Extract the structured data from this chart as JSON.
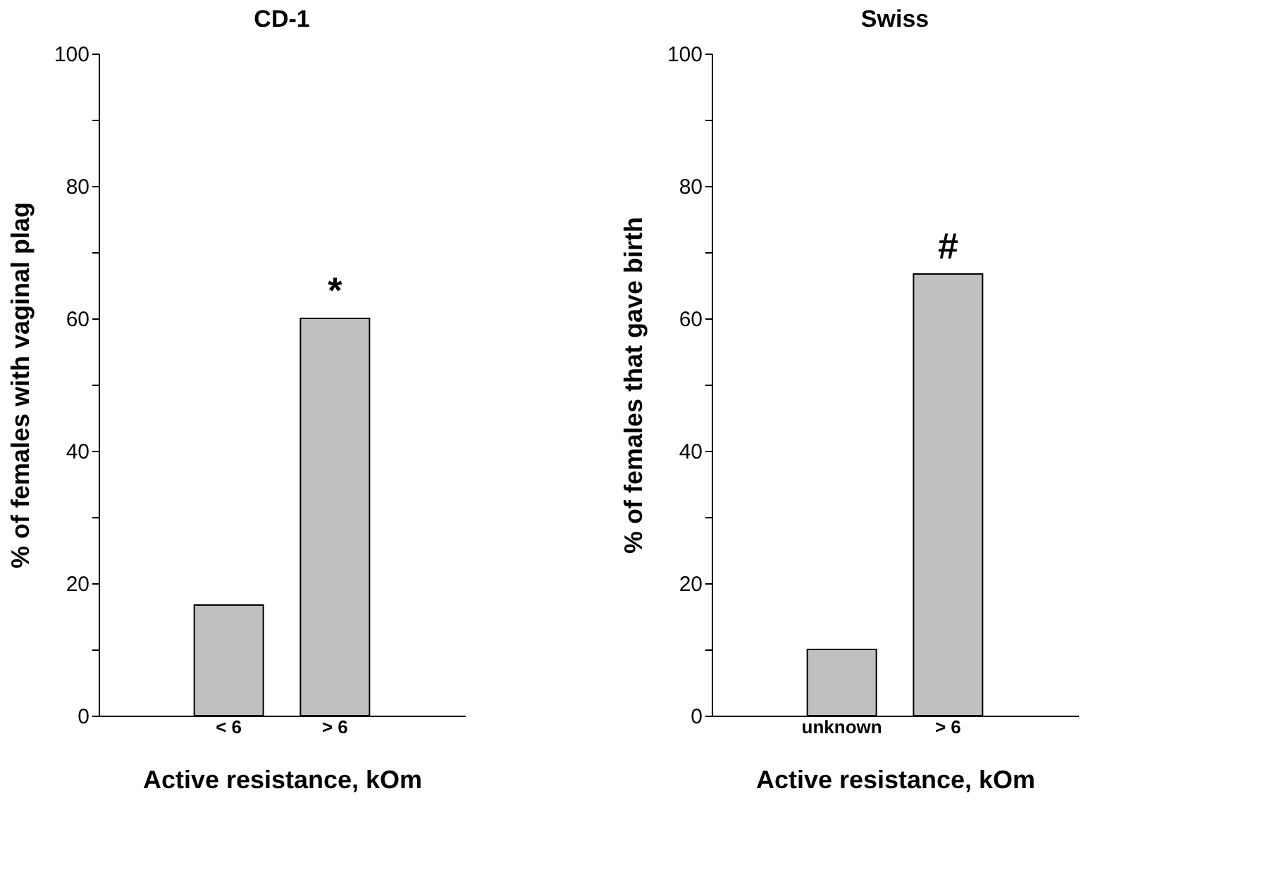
{
  "chart_data": [
    {
      "type": "bar",
      "title": "CD-1",
      "xlabel": "Active resistance, kOm",
      "ylabel": "% of females with vaginal plag",
      "categories": [
        "< 6",
        "> 6"
      ],
      "series": [
        {
          "color": "#c0c0c0",
          "values": [
            16.7,
            60
          ]
        }
      ],
      "ylim": [
        0,
        100
      ],
      "yticks": [
        0,
        {
          "value": 10,
          "label": null
        },
        20,
        {
          "value": 30,
          "label": null
        },
        40,
        {
          "value": 50,
          "label": null
        },
        60,
        {
          "value": 70,
          "label": null
        },
        80,
        {
          "value": 90,
          "label": null
        },
        100
      ],
      "annotations": [
        {
          "text": "*",
          "x": "> 6",
          "y": 60
        }
      ],
      "grid": false,
      "legend": false
    },
    {
      "type": "bar",
      "title": "Swiss",
      "xlabel": "Active resistance, kOm",
      "ylabel": "% of females that gave birth",
      "categories": [
        "unknown",
        "> 6"
      ],
      "series": [
        {
          "color": "#c0c0c0",
          "values": [
            10,
            66.7
          ]
        }
      ],
      "ylim": [
        0,
        100
      ],
      "yticks": [
        0,
        {
          "value": 10,
          "label": null
        },
        20,
        {
          "value": 30,
          "label": null
        },
        40,
        {
          "value": 50,
          "label": null
        },
        60,
        {
          "value": 70,
          "label": null
        },
        80,
        {
          "value": 90,
          "label": null
        },
        100
      ],
      "annotations": [
        {
          "text": "#",
          "x": "> 6",
          "y": 66.7
        }
      ],
      "grid": false,
      "legend": false
    }
  ]
}
